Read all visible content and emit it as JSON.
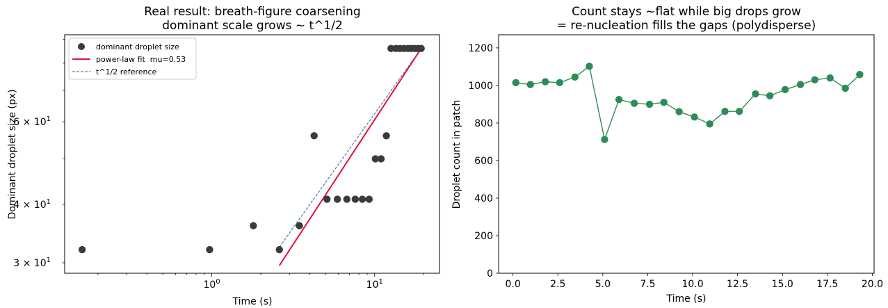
{
  "chart_data": [
    {
      "type": "scatter",
      "title_line1": "Real result: breath-figure coarsening",
      "title_line2": "dominant scale grows ~ t^1/2",
      "xlabel": "Time (s)",
      "ylabel": "Dominant droplet size (px)",
      "xscale": "log",
      "yscale": "log",
      "xlim": [
        0.125,
        25
      ],
      "ylim": [
        28.5,
        92
      ],
      "x_major_ticks": [
        {
          "value": 1,
          "base": "10",
          "exp": "0"
        },
        {
          "value": 10,
          "base": "10",
          "exp": "1"
        }
      ],
      "y_labeled_ticks": [
        {
          "value": 30,
          "mant": "3 × 10",
          "exp": "1"
        },
        {
          "value": 40,
          "mant": "4 × 10",
          "exp": "1"
        },
        {
          "value": 60,
          "mant": "6 × 10",
          "exp": "1"
        }
      ],
      "legend_position": "upper left",
      "series": [
        {
          "name": "dominant droplet size",
          "kind": "points",
          "color": "#3b3b3b",
          "x": [
            0.16,
            0.97,
            1.8,
            2.6,
            3.45,
            4.25,
            5.1,
            5.9,
            6.75,
            7.6,
            8.4,
            9.25,
            10.1,
            10.95,
            11.8,
            12.6,
            13.5,
            14.3,
            15.15,
            16.0,
            16.8,
            17.65,
            18.5,
            19.3
          ],
          "y": [
            32,
            32,
            36,
            32,
            36,
            56,
            41,
            41,
            41,
            41,
            41,
            41,
            50,
            50,
            56,
            86,
            86,
            86,
            86,
            86,
            86,
            86,
            86,
            86
          ]
        },
        {
          "name": "power-law fit  mu=0.53",
          "kind": "line",
          "color": "#dc143c",
          "x": [
            2.6,
            19.3
          ],
          "y": [
            29.6,
            86
          ]
        },
        {
          "name": "t^1/2 reference",
          "kind": "dashed",
          "color": "#4a88b8",
          "x": [
            2.6,
            19.3
          ],
          "y": [
            32.4,
            86
          ]
        }
      ]
    },
    {
      "type": "line",
      "title_line1": "Count stays ~flat while big drops grow",
      "title_line2": "= re-nucleation fills the gaps (polydisperse)",
      "xlabel": "Time (s)",
      "ylabel": "Droplet count in patch",
      "xlim": [
        -0.8,
        20.1
      ],
      "ylim": [
        0,
        1270
      ],
      "xticks": [
        0,
        2.5,
        5,
        7.5,
        10,
        12.5,
        15,
        17.5,
        20
      ],
      "xtick_labels": [
        "0.0",
        "2.5",
        "5.0",
        "7.5",
        "10.0",
        "12.5",
        "15.0",
        "17.5",
        "20.0"
      ],
      "yticks": [
        0,
        200,
        400,
        600,
        800,
        1000,
        1200
      ],
      "ytick_labels": [
        "0",
        "200",
        "400",
        "600",
        "800",
        "1000",
        "1200"
      ],
      "series": [
        {
          "color": "#2e8b57",
          "x": [
            0.16,
            0.97,
            1.8,
            2.6,
            3.45,
            4.25,
            5.1,
            5.9,
            6.75,
            7.6,
            8.4,
            9.25,
            10.1,
            10.95,
            11.8,
            12.6,
            13.5,
            14.3,
            15.15,
            16.0,
            16.8,
            17.65,
            18.5,
            19.3
          ],
          "y": [
            1015,
            1005,
            1020,
            1015,
            1045,
            1102,
            712,
            925,
            905,
            900,
            910,
            860,
            832,
            795,
            862,
            862,
            955,
            945,
            978,
            1005,
            1030,
            1040,
            985,
            1058
          ]
        }
      ]
    }
  ]
}
